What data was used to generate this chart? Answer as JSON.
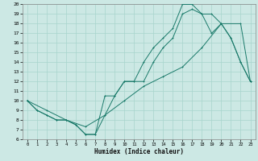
{
  "xlabel": "Humidex (Indice chaleur)",
  "bg_color": "#cce8e4",
  "grid_color": "#a8d4cc",
  "line_color": "#1a7a6a",
  "xlim": [
    -0.5,
    23.5
  ],
  "ylim": [
    6,
    20
  ],
  "xticks": [
    0,
    1,
    2,
    3,
    4,
    5,
    6,
    7,
    8,
    9,
    10,
    11,
    12,
    13,
    14,
    15,
    16,
    17,
    18,
    19,
    20,
    21,
    22,
    23
  ],
  "yticks": [
    6,
    7,
    8,
    9,
    10,
    11,
    12,
    13,
    14,
    15,
    16,
    17,
    18,
    19,
    20
  ],
  "line1_x": [
    0,
    1,
    2,
    3,
    4,
    5,
    6,
    7,
    8,
    9,
    10,
    11,
    12,
    13,
    14,
    15,
    16,
    17,
    18,
    19,
    20,
    21,
    22,
    23
  ],
  "line1_y": [
    10,
    9,
    8.5,
    8,
    8,
    7.5,
    6.5,
    6.5,
    10.5,
    10.5,
    12,
    12,
    14,
    15.5,
    16.5,
    17.5,
    20,
    20,
    19,
    19,
    18,
    16.5,
    14,
    12
  ],
  "line2_x": [
    0,
    1,
    2,
    3,
    4,
    5,
    6,
    7,
    8,
    9,
    10,
    11,
    12,
    13,
    14,
    15,
    16,
    17,
    18,
    19,
    20,
    21,
    22,
    23
  ],
  "line2_y": [
    10,
    9,
    8.5,
    8,
    8,
    7.5,
    6.5,
    6.5,
    8.5,
    10.5,
    12,
    12,
    12,
    14,
    15.5,
    16.5,
    19,
    19.5,
    19,
    17,
    18,
    16.5,
    14,
    12
  ],
  "line3_x": [
    0,
    2,
    4,
    6,
    8,
    10,
    12,
    14,
    16,
    18,
    20,
    22,
    23
  ],
  "line3_y": [
    10,
    9,
    8,
    7.3,
    8.5,
    10,
    11.5,
    12.5,
    13.5,
    15.5,
    18,
    18,
    12
  ]
}
